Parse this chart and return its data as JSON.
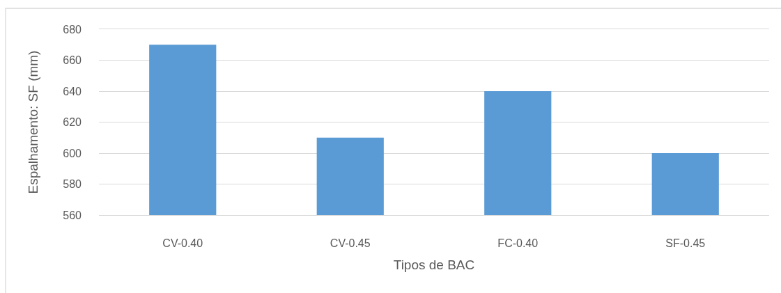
{
  "chart_data": {
    "type": "bar",
    "xlabel": "Tipos de BAC",
    "ylabel": "Espalhamento: SF (mm)",
    "categories": [
      "CV-0.40",
      "CV-0.45",
      "FC-0.40",
      "SF-0.45"
    ],
    "values": [
      670,
      610,
      640,
      600
    ],
    "color": "#5b9bd5",
    "ylim": [
      560,
      680
    ],
    "yticks": [
      560,
      580,
      600,
      620,
      640,
      660,
      680
    ],
    "grid": "y"
  }
}
